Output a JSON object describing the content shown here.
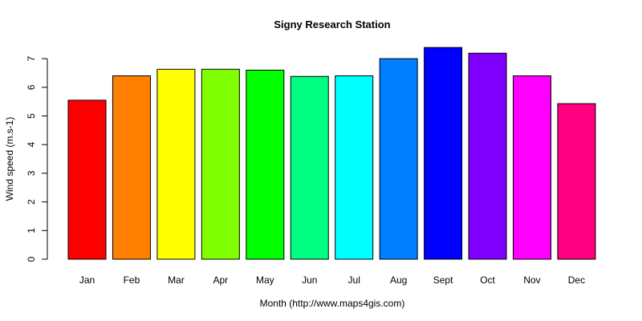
{
  "chart_data": {
    "type": "bar",
    "title": "Signy Research Station",
    "xlabel": "Month (http://www.maps4gis.com)",
    "ylabel": "Wind speed (m.s-1)",
    "categories": [
      "Jan",
      "Feb",
      "Mar",
      "Apr",
      "May",
      "Jun",
      "Jul",
      "Aug",
      "Sept",
      "Oct",
      "Nov",
      "Dec"
    ],
    "values": [
      5.55,
      6.4,
      6.63,
      6.63,
      6.6,
      6.38,
      6.4,
      7.0,
      7.39,
      7.19,
      6.4,
      5.43
    ],
    "colors": [
      "#FF0000",
      "#FF8000",
      "#FFFF00",
      "#80FF00",
      "#00FF00",
      "#00FF80",
      "#00FFFF",
      "#0080FF",
      "#0000FF",
      "#8000FF",
      "#FF00FF",
      "#FF0080"
    ],
    "yticks": [
      0,
      1,
      2,
      3,
      4,
      5,
      6,
      7
    ],
    "ylim": [
      0,
      7
    ],
    "grid": false,
    "legend": null
  }
}
